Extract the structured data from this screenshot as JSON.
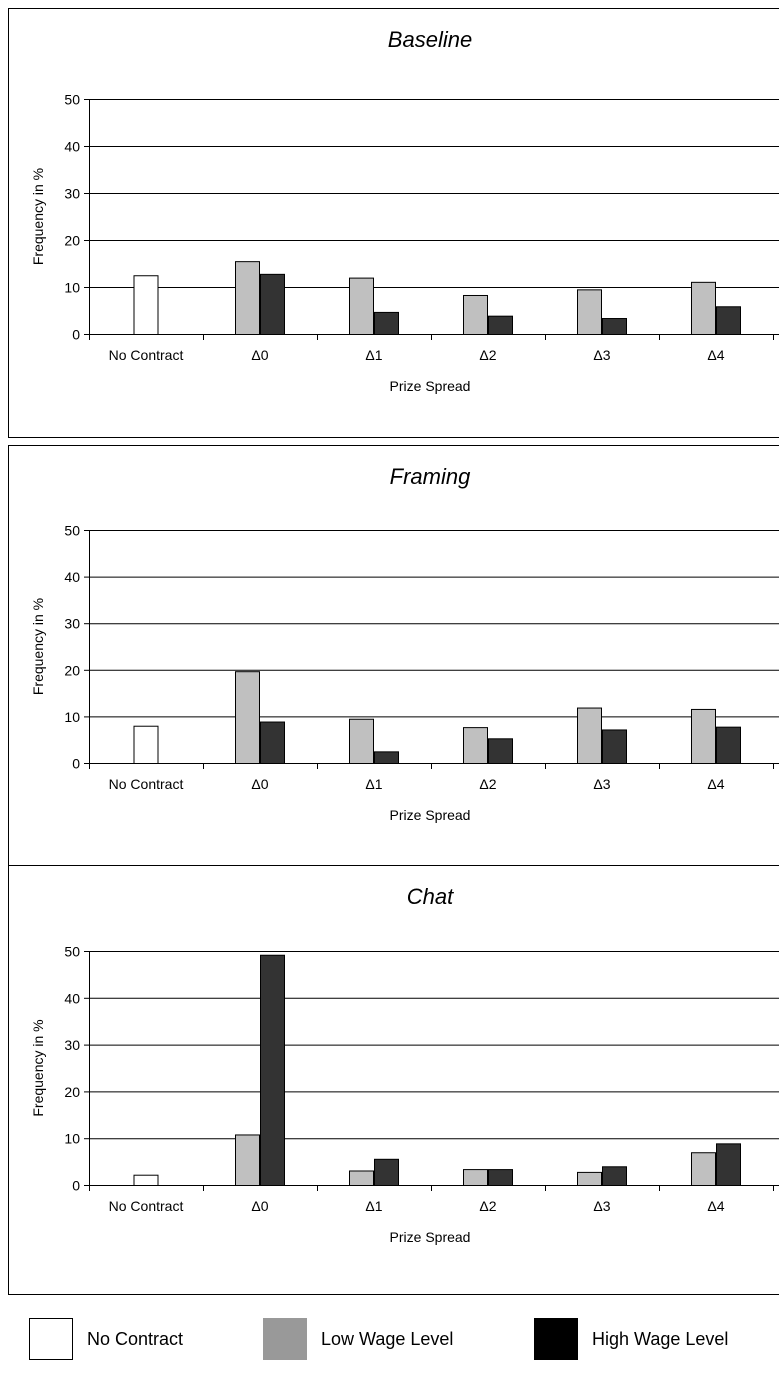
{
  "legend": {
    "no_contract": "No Contract",
    "low_wage": "Low Wage Level",
    "high_wage": "High Wage Level"
  },
  "colors": {
    "no_contract": "#ffffff",
    "low_wage": "#c0c0c0",
    "high_wage": "#333333",
    "legend_low": "#999999",
    "legend_high": "#000000"
  },
  "chart_data": [
    {
      "type": "bar",
      "title": "Baseline",
      "xlabel": "Prize Spread",
      "ylabel": "Frequency in %",
      "ylim": [
        0,
        50
      ],
      "yticks": [
        0,
        10,
        20,
        30,
        40,
        50
      ],
      "categories": [
        "No Contract",
        "Δ0",
        "Δ1",
        "Δ2",
        "Δ3",
        "Δ4"
      ],
      "series": [
        {
          "name": "No Contract",
          "values": [
            12.5,
            null,
            null,
            null,
            null,
            null
          ]
        },
        {
          "name": "Low Wage Level",
          "values": [
            null,
            15.5,
            12.0,
            8.3,
            9.5,
            11.1
          ]
        },
        {
          "name": "High Wage Level",
          "values": [
            null,
            12.8,
            4.7,
            3.9,
            3.4,
            5.9
          ]
        }
      ],
      "grid": true
    },
    {
      "type": "bar",
      "title": "Framing",
      "xlabel": "Prize Spread",
      "ylabel": "Frequency in %",
      "ylim": [
        0,
        50
      ],
      "yticks": [
        0,
        10,
        20,
        30,
        40,
        50
      ],
      "categories": [
        "No Contract",
        "Δ0",
        "Δ1",
        "Δ2",
        "Δ3",
        "Δ4"
      ],
      "series": [
        {
          "name": "No Contract",
          "values": [
            8.0,
            null,
            null,
            null,
            null,
            null
          ]
        },
        {
          "name": "Low Wage Level",
          "values": [
            null,
            19.7,
            9.5,
            7.7,
            11.9,
            11.6
          ]
        },
        {
          "name": "High Wage Level",
          "values": [
            null,
            8.9,
            2.5,
            5.3,
            7.2,
            7.8
          ]
        }
      ],
      "grid": true
    },
    {
      "type": "bar",
      "title": "Chat",
      "xlabel": "Prize Spread",
      "ylabel": "Frequency in %",
      "ylim": [
        0,
        50
      ],
      "yticks": [
        0,
        10,
        20,
        30,
        40,
        50
      ],
      "categories": [
        "No Contract",
        "Δ0",
        "Δ1",
        "Δ2",
        "Δ3",
        "Δ4"
      ],
      "series": [
        {
          "name": "No Contract",
          "values": [
            2.2,
            null,
            null,
            null,
            null,
            null
          ]
        },
        {
          "name": "Low Wage Level",
          "values": [
            null,
            10.8,
            3.1,
            3.4,
            2.8,
            7.0
          ]
        },
        {
          "name": "High Wage Level",
          "values": [
            null,
            49.2,
            5.6,
            3.4,
            4.0,
            8.9
          ]
        }
      ],
      "grid": true
    }
  ]
}
